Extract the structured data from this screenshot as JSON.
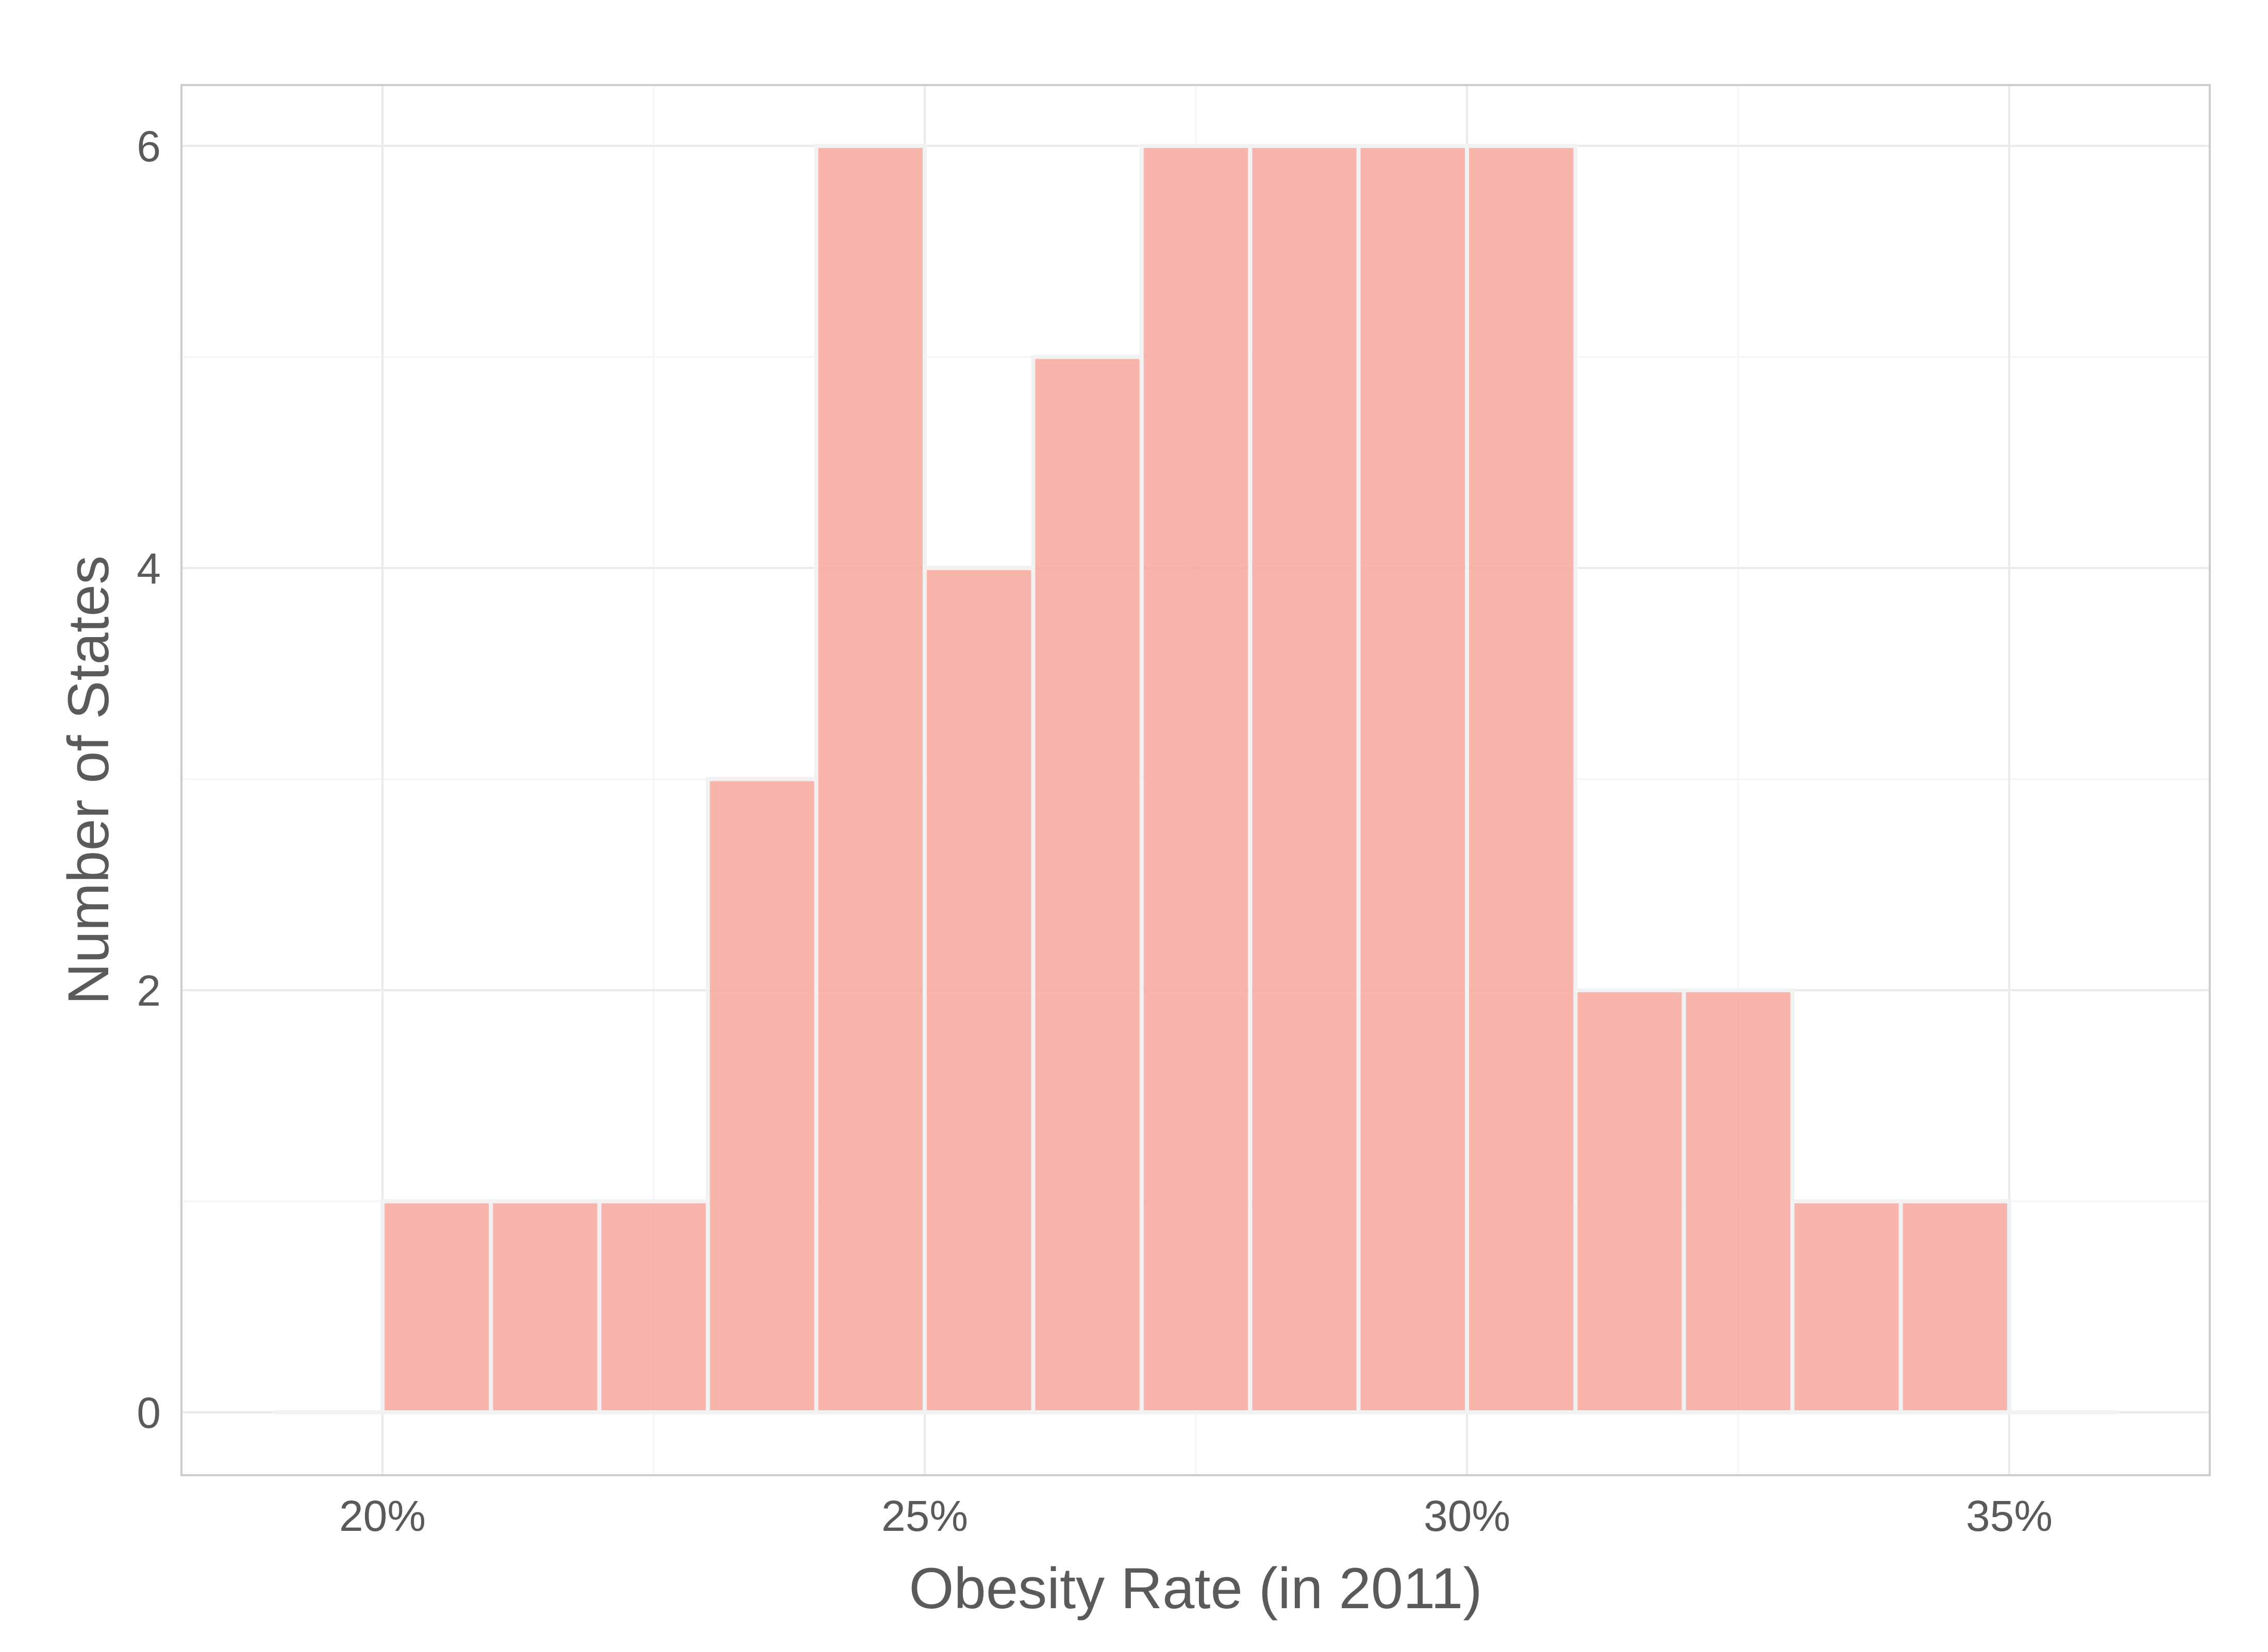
{
  "chart_data": {
    "type": "bar",
    "title": "",
    "xlabel": "Obesity Rate (in 2011)",
    "ylabel": "Number of States",
    "bin_width": 1,
    "bins": [
      {
        "x0": 19,
        "x1": 20,
        "count": 0
      },
      {
        "x0": 20,
        "x1": 21,
        "count": 1
      },
      {
        "x0": 21,
        "x1": 22,
        "count": 1
      },
      {
        "x0": 22,
        "x1": 23,
        "count": 1
      },
      {
        "x0": 23,
        "x1": 24,
        "count": 3
      },
      {
        "x0": 24,
        "x1": 25,
        "count": 6
      },
      {
        "x0": 25,
        "x1": 26,
        "count": 4
      },
      {
        "x0": 26,
        "x1": 27,
        "count": 5
      },
      {
        "x0": 27,
        "x1": 28,
        "count": 6
      },
      {
        "x0": 28,
        "x1": 29,
        "count": 6
      },
      {
        "x0": 29,
        "x1": 30,
        "count": 6
      },
      {
        "x0": 30,
        "x1": 31,
        "count": 6
      },
      {
        "x0": 31,
        "x1": 32,
        "count": 2
      },
      {
        "x0": 32,
        "x1": 33,
        "count": 2
      },
      {
        "x0": 33,
        "x1": 34,
        "count": 1
      },
      {
        "x0": 34,
        "x1": 35,
        "count": 1
      },
      {
        "x0": 35,
        "x1": 36,
        "count": 0
      }
    ],
    "xlim": [
      15.3,
      52.7
    ],
    "ylim": [
      -0.3,
      6.3
    ],
    "x_ticks": [
      {
        "value": 20,
        "label": "20%"
      },
      {
        "value": 25,
        "label": "25%"
      },
      {
        "value": 30,
        "label": "30%"
      },
      {
        "value": 35,
        "label": "35%"
      }
    ],
    "y_ticks": [
      {
        "value": 0,
        "label": "0"
      },
      {
        "value": 2,
        "label": "2"
      },
      {
        "value": 4,
        "label": "4"
      },
      {
        "value": 6,
        "label": "6"
      }
    ],
    "grid": true,
    "legend": "none",
    "colors": {
      "bar_fill": "#f8a196",
      "bar_stroke": "#f2f2f2",
      "panel_border": "#cccccc",
      "grid_major": "#ebebeb",
      "grid_minor": "#f5f5f5",
      "text": "#5a5a5a"
    }
  }
}
